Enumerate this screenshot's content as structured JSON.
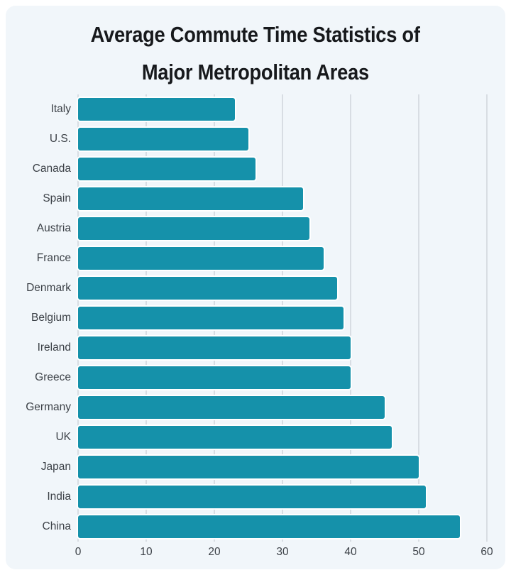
{
  "page": {
    "background_color": "#ffffff",
    "card_background_color": "#f1f6fa"
  },
  "title": {
    "line1": "Average Commute Time Statistics of",
    "line2": "Major Metropolitan Areas"
  },
  "chart_data": {
    "type": "bar",
    "orientation": "horizontal",
    "title": "Average Commute Time Statistics of Major Metropolitan Areas",
    "categories": [
      "Italy",
      "U.S.",
      "Canada",
      "Spain",
      "Austria",
      "France",
      "Denmark",
      "Belgium",
      "Ireland",
      "Greece",
      "Germany",
      "UK",
      "Japan",
      "India",
      "China"
    ],
    "values": [
      23,
      25,
      26,
      33,
      34,
      36,
      38,
      39,
      40,
      40,
      45,
      46,
      50,
      51,
      56
    ],
    "xlabel": "",
    "ylabel": "",
    "xlim": [
      0,
      60
    ],
    "xticks": [
      0,
      10,
      20,
      30,
      40,
      50,
      60
    ],
    "grid": "vertical-only",
    "legend": "none",
    "bar_color": "#1591aa",
    "gridline_color": "#d8dde3",
    "axis_label_color": "#3c4147",
    "title_color": "#17191c"
  }
}
